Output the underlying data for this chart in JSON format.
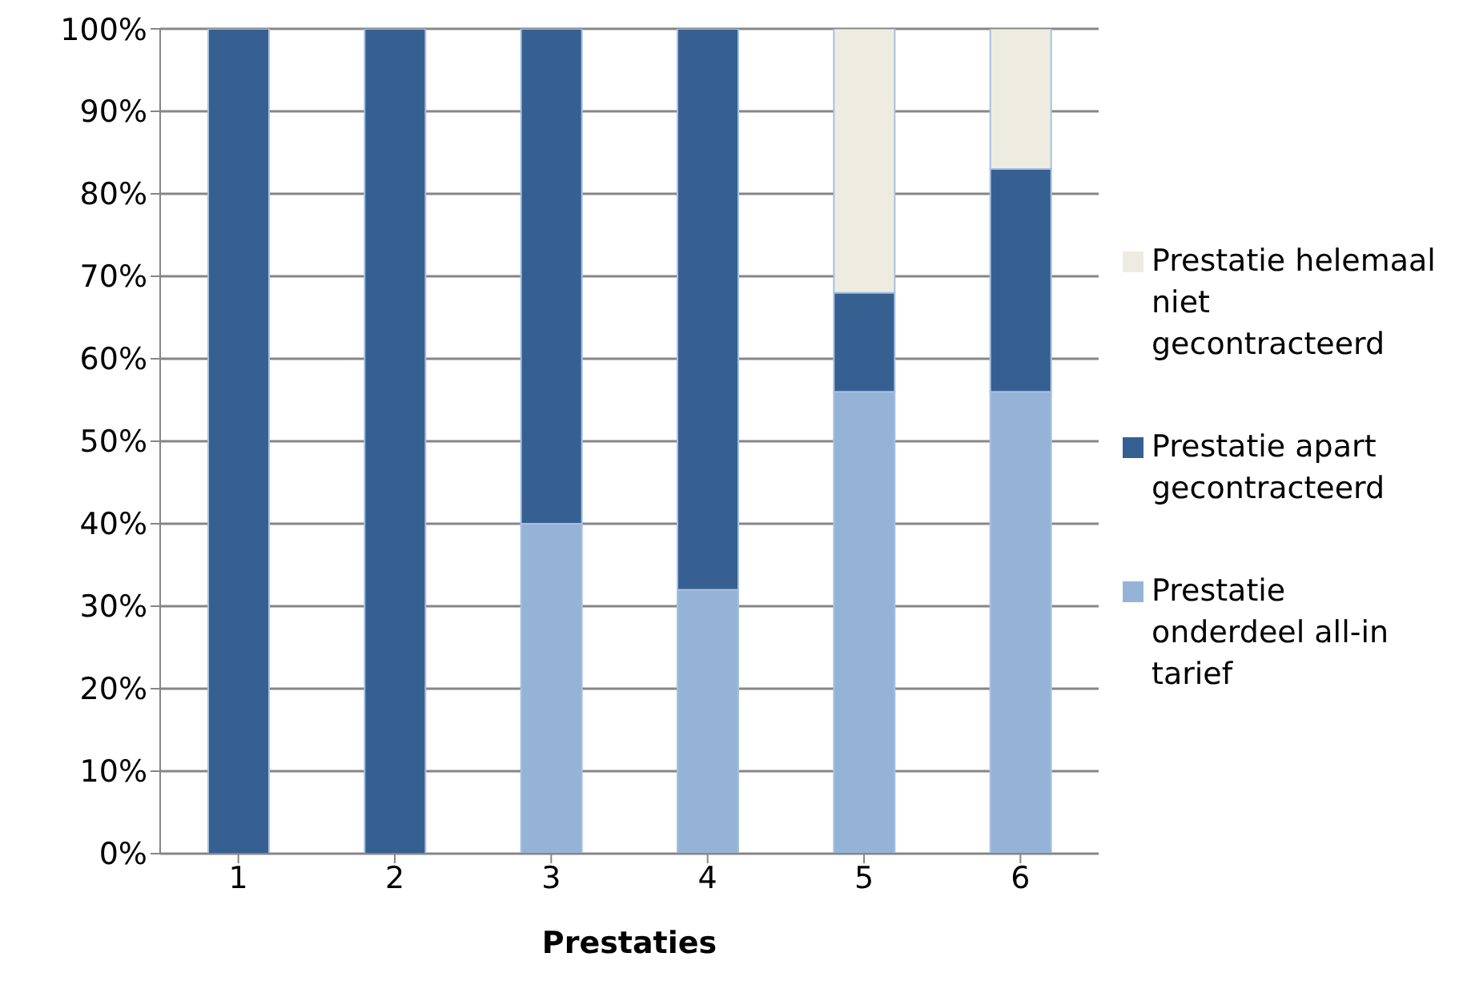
{
  "chart_data": {
    "type": "bar",
    "stacked": true,
    "xlabel": "Prestaties",
    "categories": [
      "1",
      "2",
      "3",
      "4",
      "5",
      "6"
    ],
    "series": [
      {
        "name": "Prestatie onderdeel all-in tarief",
        "color": "#95b3d7",
        "values": [
          0,
          0,
          40,
          32,
          56,
          56
        ]
      },
      {
        "name": "Prestatie apart gecontracteerd",
        "color": "#366092",
        "values": [
          100,
          100,
          60,
          68,
          12,
          27
        ]
      },
      {
        "name": "Prestatie helemaal niet gecontracteerd",
        "color": "#eeece1",
        "values": [
          0,
          0,
          0,
          0,
          32,
          17
        ]
      }
    ],
    "ylim": [
      0,
      100
    ],
    "yticks": [
      {
        "value": 0,
        "label": "0%"
      },
      {
        "value": 10,
        "label": "10%"
      },
      {
        "value": 20,
        "label": "20%"
      },
      {
        "value": 30,
        "label": "30%"
      },
      {
        "value": 40,
        "label": "40%"
      },
      {
        "value": 50,
        "label": "50%"
      },
      {
        "value": 60,
        "label": "60%"
      },
      {
        "value": 70,
        "label": "70%"
      },
      {
        "value": 80,
        "label": "80%"
      },
      {
        "value": 90,
        "label": "90%"
      },
      {
        "value": 100,
        "label": "100%"
      }
    ],
    "grid": "y",
    "legend": "right"
  }
}
